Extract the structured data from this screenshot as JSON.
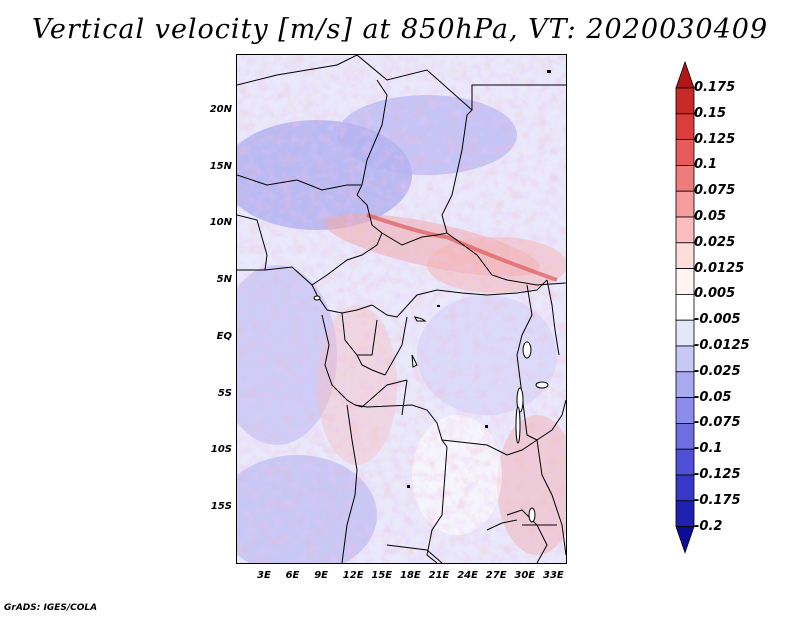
{
  "title": "Vertical velocity [m/s] at 850hPa, VT: 2020030409",
  "footer": "GrADS: IGES/COLA",
  "map": {
    "variable": "Vertical velocity",
    "units": "m/s",
    "level": "850hPa",
    "valid_time": "2020030409",
    "lon_labels": [
      "3E",
      "6E",
      "9E",
      "12E",
      "15E",
      "18E",
      "21E",
      "24E",
      "27E",
      "30E",
      "33E"
    ],
    "lat_labels": [
      "20N",
      "15N",
      "10N",
      "5N",
      "EQ",
      "5S",
      "10S",
      "15S"
    ],
    "region": "Central Africa"
  },
  "colorbar": {
    "labels": [
      "0.175",
      "0.15",
      "0.125",
      "0.1",
      "0.075",
      "0.05",
      "0.025",
      "0.0125",
      "0.005",
      "-0.005",
      "-0.0125",
      "-0.025",
      "-0.05",
      "-0.075",
      "-0.1",
      "-0.125",
      "-0.175",
      "-0.2"
    ],
    "colors": [
      "#b31616",
      "#c82a2a",
      "#dc3c3c",
      "#e65a5a",
      "#ef7c7c",
      "#f59d9d",
      "#fabebe",
      "#fddcdc",
      "#fff3f3",
      "#ffffff",
      "#e6e6fa",
      "#c8c8f5",
      "#aaaaf0",
      "#8c8ceb",
      "#6e6ee1",
      "#5050d7",
      "#3737c8",
      "#2020b0",
      "#0c0c96"
    ]
  }
}
